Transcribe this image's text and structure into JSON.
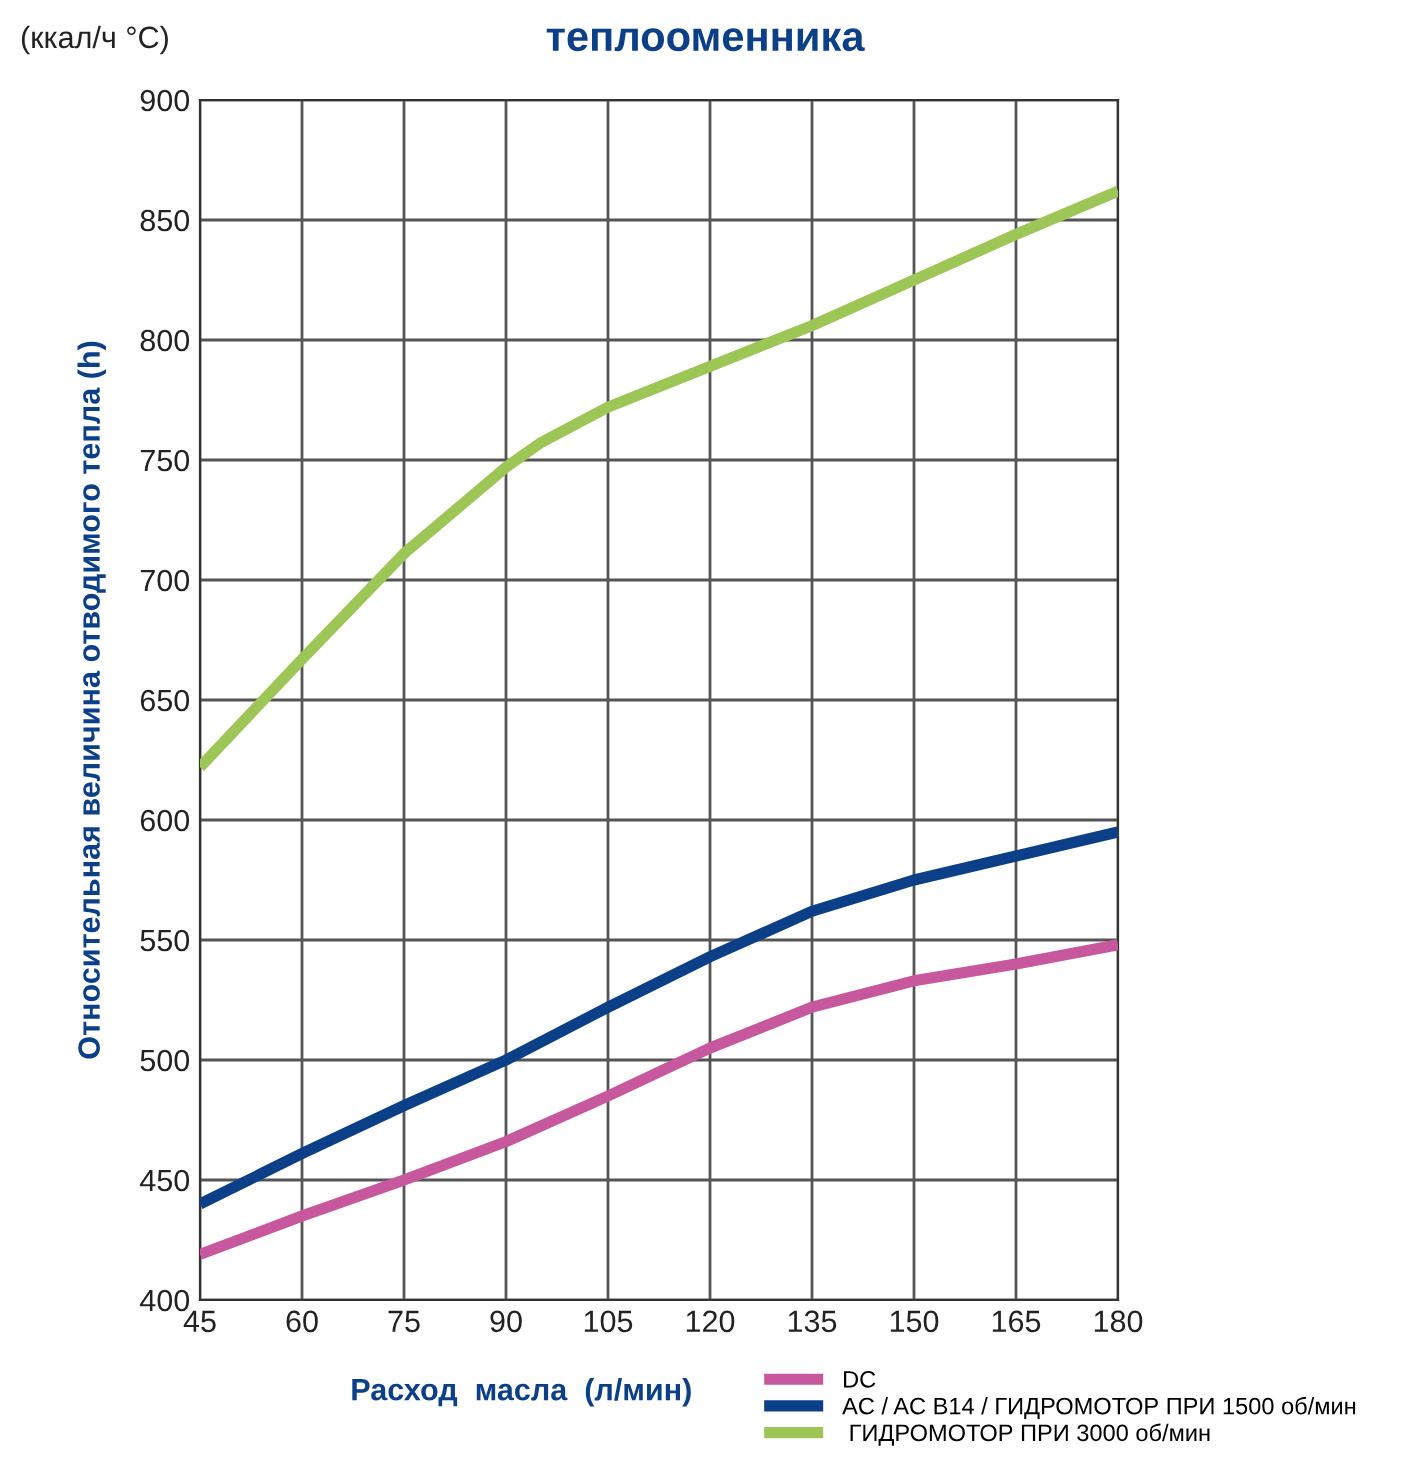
{
  "chart_data": {
    "type": "line",
    "title": "теплооменника",
    "ylabel": "Относительная величина отводимого тепла (h)",
    "xlabel": "Расход  масла  (л/мин)",
    "annotations": [
      "(ккал/ч °C)"
    ],
    "x": [
      45,
      60,
      75,
      90,
      95,
      105,
      120,
      135,
      150,
      165,
      180
    ],
    "series": [
      {
        "name": "DC",
        "color": "#c8589e",
        "x": [
          45,
          60,
          75,
          90,
          105,
          120,
          135,
          150,
          165,
          180
        ],
        "values": [
          419,
          435,
          450,
          466,
          485,
          505,
          522,
          533,
          540,
          548
        ]
      },
      {
        "name": "AC / AC B14 / ГИДРОМОТОР ПРИ 1500 об/мин",
        "color": "#0b3f88",
        "x": [
          45,
          60,
          75,
          90,
          105,
          120,
          135,
          150,
          165,
          180
        ],
        "values": [
          440,
          461,
          481,
          500,
          522,
          543,
          562,
          575,
          585,
          595
        ]
      },
      {
        "name": " ГИДРОМОТОР ПРИ 3000 об/мин",
        "color": "#9dc656",
        "values": [
          622,
          667,
          711,
          747,
          757,
          772,
          789,
          806,
          825,
          844,
          862
        ]
      }
    ],
    "xlim": [
      45,
      180
    ],
    "xticks": [
      45,
      60,
      75,
      90,
      105,
      120,
      135,
      150,
      165,
      180
    ],
    "ylim": [
      400,
      900
    ],
    "yticks": [
      400,
      450,
      500,
      550,
      600,
      650,
      700,
      750,
      800,
      850,
      900
    ],
    "grid": true,
    "legend": "bottom right",
    "line_style": "solid"
  }
}
